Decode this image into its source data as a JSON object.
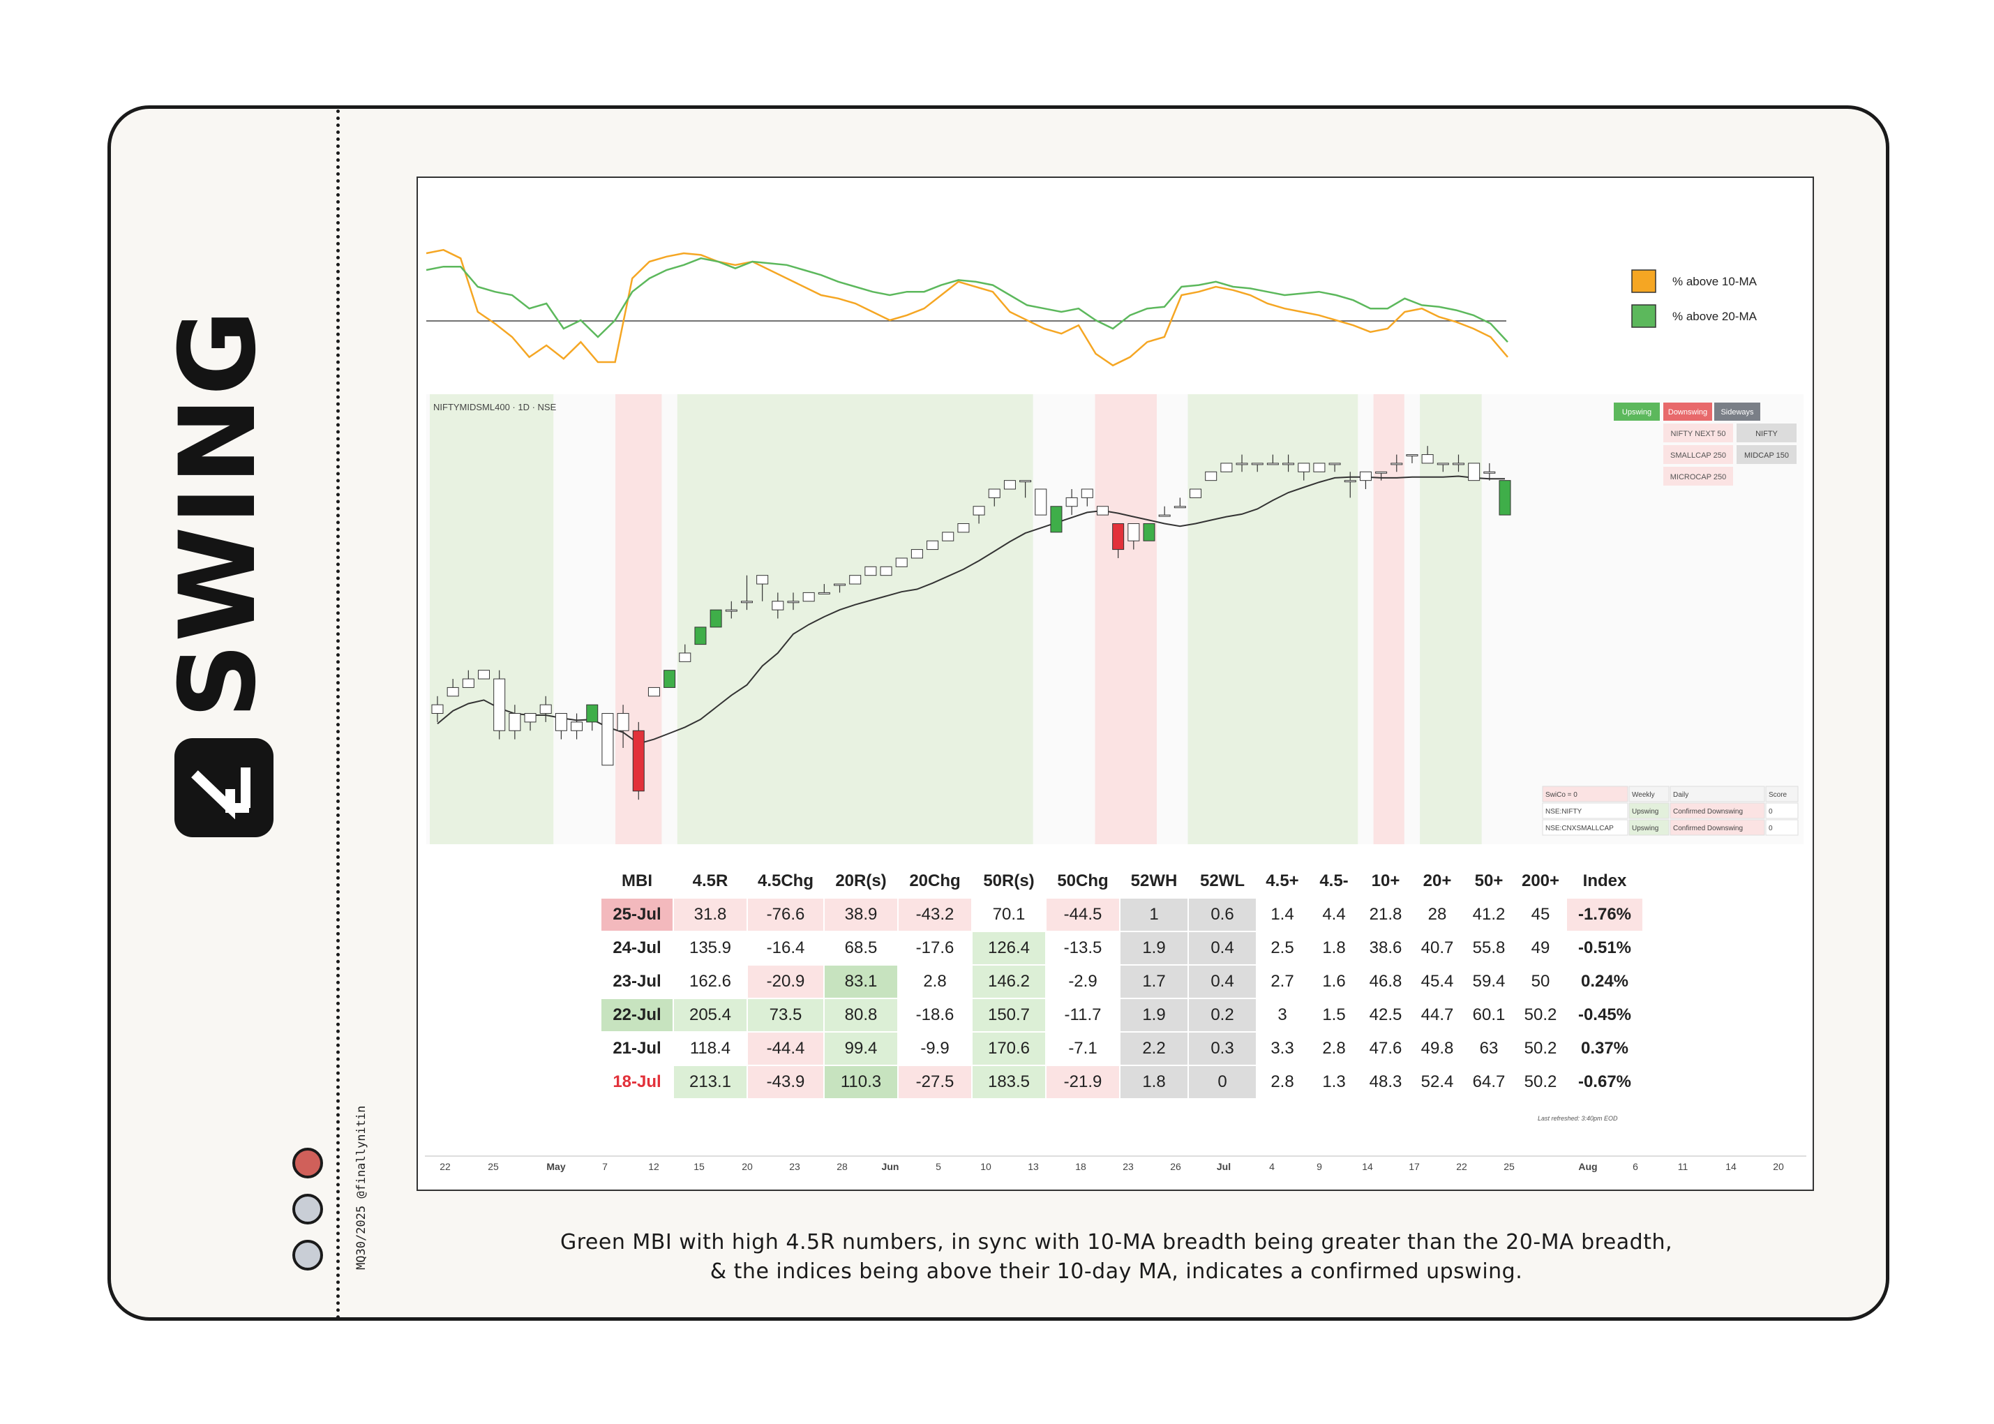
{
  "brand": {
    "title": "SWING",
    "handle": "MQ30/2025 @finallynitin"
  },
  "caption": {
    "line1": "Green MBI with high 4.5R numbers, in sync with 10-MA breadth being greater than the 20-MA breadth,",
    "line2": "& the indices being above their 10-day MA, indicates a confirmed upswing."
  },
  "colors": {
    "green": "#5cb85c",
    "orange": "#f5a623",
    "red": "#e2313a",
    "upswing_band": "#e8f2e1",
    "downswing_band": "#fbe3e3"
  },
  "chart_data": [
    {
      "type": "line",
      "title": "",
      "legend_position": "top-right",
      "series": [
        {
          "name": "% above 10-MA",
          "color": "#f5a623",
          "values": [
            95,
            97,
            92,
            60,
            53,
            45,
            33,
            40,
            32,
            42,
            30,
            30,
            80,
            90,
            93,
            95,
            94,
            90,
            88,
            90,
            85,
            80,
            75,
            70,
            68,
            65,
            60,
            55,
            58,
            62,
            70,
            78,
            75,
            72,
            60,
            55,
            50,
            47,
            52,
            35,
            28,
            33,
            42,
            45,
            70,
            72,
            75,
            73,
            70,
            65,
            62,
            60,
            58,
            55,
            52,
            48,
            50,
            60,
            62,
            57,
            54,
            50,
            45,
            33
          ],
          "scale": [
            0,
            100
          ]
        },
        {
          "name": "% above 20-MA",
          "color": "#5cb85c",
          "values": [
            85,
            87,
            87,
            75,
            72,
            70,
            62,
            65,
            50,
            55,
            45,
            55,
            72,
            80,
            85,
            88,
            92,
            90,
            86,
            90,
            89,
            88,
            85,
            82,
            78,
            75,
            72,
            70,
            72,
            72,
            76,
            79,
            78,
            76,
            70,
            64,
            62,
            60,
            62,
            55,
            50,
            58,
            62,
            63,
            75,
            76,
            78,
            75,
            74,
            72,
            70,
            71,
            72,
            70,
            67,
            62,
            62,
            68,
            64,
            63,
            61,
            58,
            53,
            42
          ],
          "scale": [
            0,
            100
          ]
        }
      ]
    },
    {
      "type": "candlestick",
      "title": "NIFTYMIDSML400 · 1D · NSE",
      "x_ticks": [
        "22",
        "25",
        "May",
        "7",
        "12",
        "15",
        "20",
        "23",
        "28",
        "Jun",
        "5",
        "10",
        "13",
        "18",
        "23",
        "26",
        "Jul",
        "4",
        "9",
        "14",
        "17",
        "22",
        "25",
        "Aug",
        "6",
        "11",
        "14",
        "20"
      ],
      "candles": [
        [
          92,
          93,
          91,
          90
        ],
        [
          93,
          95,
          94,
          93
        ],
        [
          94,
          96,
          95,
          94
        ],
        [
          96,
          96,
          95,
          95
        ],
        [
          95,
          96,
          89,
          88
        ],
        [
          91,
          92,
          89,
          88
        ],
        [
          90,
          91,
          91,
          89
        ],
        [
          91,
          93,
          92,
          90
        ],
        [
          91,
          91,
          89,
          88
        ],
        [
          90,
          91,
          89,
          88
        ],
        [
          90,
          92,
          92,
          89
        ],
        [
          91,
          91,
          85,
          85
        ],
        [
          91,
          92,
          89,
          87
        ],
        [
          89,
          90,
          82,
          81
        ],
        [
          93,
          94,
          94,
          93
        ],
        [
          94,
          95,
          96,
          94
        ],
        [
          97,
          99,
          98,
          97
        ],
        [
          99,
          100,
          101,
          99
        ],
        [
          101,
          102,
          103,
          101
        ],
        [
          103,
          104,
          103,
          102
        ],
        [
          104,
          107,
          104,
          103
        ],
        [
          106,
          106,
          107,
          104
        ],
        [
          103,
          105,
          104,
          102
        ],
        [
          104,
          105,
          104,
          103
        ],
        [
          104,
          105,
          105,
          104
        ],
        [
          105,
          106,
          105,
          105
        ],
        [
          106,
          106,
          106,
          105
        ],
        [
          106,
          107,
          107,
          106
        ],
        [
          107,
          108,
          108,
          107
        ],
        [
          107,
          108,
          108,
          108
        ],
        [
          108,
          109,
          109,
          108
        ],
        [
          109,
          110,
          110,
          109
        ],
        [
          110,
          111,
          111,
          110
        ],
        [
          111,
          112,
          112,
          111
        ],
        [
          112,
          113,
          113,
          112
        ],
        [
          114,
          115,
          115,
          113
        ],
        [
          116,
          117,
          117,
          115
        ],
        [
          117,
          118,
          118,
          117
        ],
        [
          118,
          118,
          118,
          116
        ],
        [
          117,
          117,
          114,
          114
        ],
        [
          112,
          115,
          115,
          112
        ],
        [
          115,
          117,
          116,
          114
        ],
        [
          116,
          117,
          117,
          115
        ],
        [
          115,
          115,
          114,
          114
        ],
        [
          113,
          113,
          110,
          109
        ],
        [
          113,
          113,
          111,
          110
        ],
        [
          111,
          113,
          113,
          111
        ],
        [
          114,
          115,
          114,
          114
        ],
        [
          115,
          116,
          115,
          115
        ],
        [
          116,
          117,
          117,
          116
        ],
        [
          118,
          119,
          119,
          118
        ],
        [
          119,
          120,
          120,
          119
        ],
        [
          120,
          121,
          120,
          119
        ],
        [
          120,
          120,
          120,
          119
        ],
        [
          120,
          121,
          120,
          120
        ],
        [
          120,
          121,
          120,
          119
        ],
        [
          120,
          120,
          119,
          118
        ],
        [
          119,
          120,
          120,
          119
        ],
        [
          120,
          120,
          120,
          119
        ],
        [
          118,
          119,
          118,
          116
        ],
        [
          118,
          119,
          119,
          117
        ],
        [
          119,
          119,
          119,
          118
        ],
        [
          120,
          121,
          120,
          119
        ],
        [
          121,
          121,
          121,
          120
        ],
        [
          121,
          122,
          120,
          120
        ],
        [
          120,
          120,
          120,
          119
        ],
        [
          120,
          121,
          120,
          119
        ],
        [
          120,
          120,
          118,
          118
        ],
        [
          119,
          120,
          119,
          118
        ],
        [
          114,
          118,
          118,
          114
        ]
      ],
      "ma": "10-day MA",
      "bands": [
        {
          "type": "Upswing",
          "from": 0,
          "to": 7
        },
        {
          "type": "Downswing",
          "from": 12,
          "to": 14
        },
        {
          "type": "Upswing",
          "from": 16,
          "to": 38
        },
        {
          "type": "Downswing",
          "from": 43,
          "to": 46
        },
        {
          "type": "Upswing",
          "from": 49,
          "to": 59
        },
        {
          "type": "Downswing",
          "from": 61,
          "to": 62
        },
        {
          "type": "Upswing",
          "from": 64,
          "to": 67
        }
      ]
    }
  ],
  "status_legend": {
    "headers": [
      "Upswing",
      "Downswing",
      "Sideways"
    ],
    "downswing": [
      "NIFTY NEXT 50",
      "SMALLCAP 250",
      "MICROCAP 250"
    ],
    "sideways": [
      "NIFTY",
      "MIDCAP 150"
    ]
  },
  "swico_table": {
    "header": [
      "SwiCo = 0",
      "Weekly",
      "Daily",
      "Score"
    ],
    "rows": [
      [
        "NSE:NIFTY",
        "Upswing",
        "Confirmed Downswing",
        "0"
      ],
      [
        "NSE:CNXSMALLCAP",
        "Upswing",
        "Confirmed Downswing",
        "0"
      ]
    ]
  },
  "mbi_table": {
    "headers": [
      "MBI",
      "4.5R",
      "4.5Chg",
      "20R(s)",
      "20Chg",
      "50R(s)",
      "50Chg",
      "52WH",
      "52WL",
      "4.5+",
      "4.5-",
      "10+",
      "20+",
      "50+",
      "200+",
      "Index"
    ],
    "rows": [
      [
        "25-Jul",
        "31.8",
        "-76.6",
        "38.9",
        "-43.2",
        "70.1",
        "-44.5",
        "1",
        "0.6",
        "1.4",
        "4.4",
        "21.8",
        "28",
        "41.2",
        "45",
        "-1.76%"
      ],
      [
        "24-Jul",
        "135.9",
        "-16.4",
        "68.5",
        "-17.6",
        "126.4",
        "-13.5",
        "1.9",
        "0.4",
        "2.5",
        "1.8",
        "38.6",
        "40.7",
        "55.8",
        "49",
        "-0.51%"
      ],
      [
        "23-Jul",
        "162.6",
        "-20.9",
        "83.1",
        "2.8",
        "146.2",
        "-2.9",
        "1.7",
        "0.4",
        "2.7",
        "1.6",
        "46.8",
        "45.4",
        "59.4",
        "50",
        "0.24%"
      ],
      [
        "22-Jul",
        "205.4",
        "73.5",
        "80.8",
        "-18.6",
        "150.7",
        "-11.7",
        "1.9",
        "0.2",
        "3",
        "1.5",
        "42.5",
        "44.7",
        "60.1",
        "50.2",
        "-0.45%"
      ],
      [
        "21-Jul",
        "118.4",
        "-44.4",
        "99.4",
        "-9.9",
        "170.6",
        "-7.1",
        "2.2",
        "0.3",
        "3.3",
        "2.8",
        "47.6",
        "49.8",
        "63",
        "50.2",
        "0.37%"
      ],
      [
        "18-Jul",
        "213.1",
        "-43.9",
        "110.3",
        "-27.5",
        "183.5",
        "-21.9",
        "1.8",
        "0",
        "2.8",
        "1.3",
        "48.3",
        "52.4",
        "64.7",
        "50.2",
        "-0.67%"
      ]
    ],
    "footer": "Last refreshed: 3:40pm EOD"
  }
}
